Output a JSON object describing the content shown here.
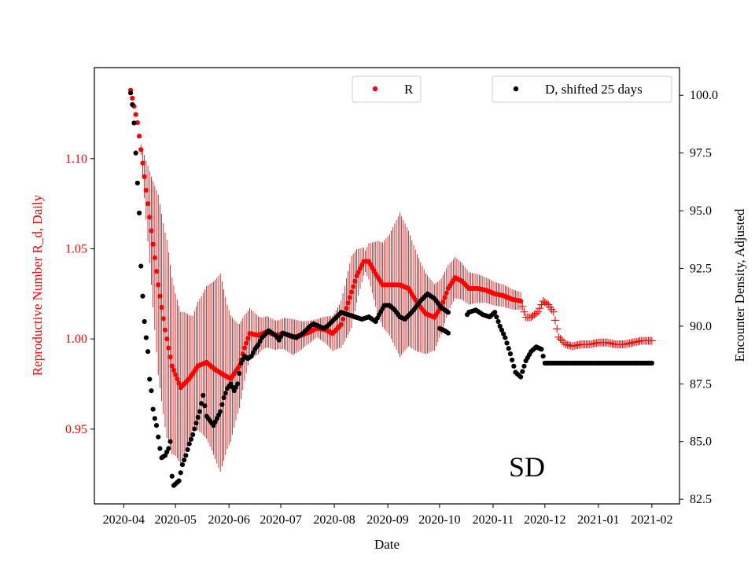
{
  "chart_data": {
    "type": "scatter",
    "title": "",
    "xlabel": "Date",
    "ylabel_left": "Reproductive Number R_d, Daily",
    "ylabel_right": "Encounter Density, Adjusted",
    "annotation": "SD",
    "x_start": "2020-04-01",
    "xlim_days": [
      -17,
      322
    ],
    "x_ticks": [
      {
        "label": "2020-04",
        "day": 0
      },
      {
        "label": "2020-05",
        "day": 30
      },
      {
        "label": "2020-06",
        "day": 61
      },
      {
        "label": "2020-07",
        "day": 91
      },
      {
        "label": "2020-08",
        "day": 122
      },
      {
        "label": "2020-09",
        "day": 153
      },
      {
        "label": "2020-10",
        "day": 183
      },
      {
        "label": "2020-11",
        "day": 214
      },
      {
        "label": "2020-12",
        "day": 244
      },
      {
        "label": "2021-01",
        "day": 275
      },
      {
        "label": "2021-02",
        "day": 306
      }
    ],
    "y_left": {
      "ylim": [
        0.9085,
        1.1505
      ],
      "ticks": [
        "0.95",
        "1.00",
        "1.05",
        "1.10"
      ],
      "tick_values": [
        0.95,
        1.0,
        1.05,
        1.1
      ],
      "color": "#ff0000"
    },
    "y_right": {
      "ylim": [
        82.3,
        101.2
      ],
      "ticks": [
        "82.5",
        "85.0",
        "87.5",
        "90.0",
        "92.5",
        "95.0",
        "97.5",
        "100.0"
      ],
      "tick_values": [
        82.5,
        85.0,
        87.5,
        90.0,
        92.5,
        95.0,
        97.5,
        100.0
      ],
      "color": "#000000"
    },
    "legend": [
      {
        "label": "R",
        "color": "#ff0000",
        "position": "upper-center"
      },
      {
        "label": "D, shifted 25 days",
        "color": "#000000",
        "position": "upper-right"
      }
    ],
    "series_R": {
      "name": "R",
      "color": "#ff0000",
      "marker_until_day": 230,
      "cross_marker_after_day": 230,
      "keypoints_day_value": [
        [
          4,
          1.138
        ],
        [
          8,
          1.12
        ],
        [
          12,
          1.09
        ],
        [
          16,
          1.06
        ],
        [
          20,
          1.03
        ],
        [
          24,
          1.005
        ],
        [
          28,
          0.985
        ],
        [
          33,
          0.973
        ],
        [
          38,
          0.978
        ],
        [
          43,
          0.985
        ],
        [
          48,
          0.987
        ],
        [
          53,
          0.983
        ],
        [
          58,
          0.98
        ],
        [
          62,
          0.978
        ],
        [
          67,
          0.985
        ],
        [
          70,
          0.995
        ],
        [
          73,
          1.003
        ],
        [
          78,
          1.002
        ],
        [
          83,
          1.004
        ],
        [
          88,
          1.002
        ],
        [
          93,
          1.003
        ],
        [
          98,
          1.001
        ],
        [
          103,
          1.002
        ],
        [
          108,
          1.004
        ],
        [
          112,
          1.006
        ],
        [
          117,
          1.005
        ],
        [
          121,
          1.003
        ],
        [
          126,
          1.008
        ],
        [
          130,
          1.02
        ],
        [
          135,
          1.035
        ],
        [
          139,
          1.043
        ],
        [
          142,
          1.043
        ],
        [
          146,
          1.036
        ],
        [
          150,
          1.03
        ],
        [
          155,
          1.03
        ],
        [
          160,
          1.03
        ],
        [
          165,
          1.028
        ],
        [
          170,
          1.02
        ],
        [
          175,
          1.014
        ],
        [
          180,
          1.012
        ],
        [
          184,
          1.018
        ],
        [
          188,
          1.028
        ],
        [
          192,
          1.034
        ],
        [
          196,
          1.032
        ],
        [
          200,
          1.028
        ],
        [
          205,
          1.028
        ],
        [
          210,
          1.027
        ],
        [
          215,
          1.025
        ],
        [
          220,
          1.024
        ],
        [
          225,
          1.022
        ],
        [
          230,
          1.021
        ],
        [
          233,
          1.012
        ],
        [
          236,
          1.012
        ],
        [
          240,
          1.015
        ],
        [
          243,
          1.021
        ],
        [
          246,
          1.019
        ],
        [
          249,
          1.015
        ],
        [
          252,
          1.001
        ],
        [
          256,
          0.997
        ],
        [
          260,
          0.996
        ],
        [
          265,
          0.997
        ],
        [
          270,
          0.997
        ],
        [
          275,
          0.998
        ],
        [
          280,
          0.998
        ],
        [
          285,
          0.997
        ],
        [
          290,
          0.997
        ],
        [
          295,
          0.998
        ],
        [
          300,
          0.999
        ],
        [
          306,
          0.999
        ]
      ],
      "error_bars_from_day": 10,
      "error_bars_to_day": 230,
      "error_half_width_keypoints": [
        [
          10,
          0.003
        ],
        [
          16,
          0.03
        ],
        [
          20,
          0.05
        ],
        [
          25,
          0.055
        ],
        [
          30,
          0.045
        ],
        [
          35,
          0.04
        ],
        [
          40,
          0.032
        ],
        [
          45,
          0.038
        ],
        [
          52,
          0.048
        ],
        [
          56,
          0.055
        ],
        [
          60,
          0.04
        ],
        [
          66,
          0.025
        ],
        [
          72,
          0.015
        ],
        [
          80,
          0.009
        ],
        [
          90,
          0.008
        ],
        [
          98,
          0.01
        ],
        [
          105,
          0.007
        ],
        [
          112,
          0.005
        ],
        [
          118,
          0.008
        ],
        [
          125,
          0.012
        ],
        [
          132,
          0.02
        ],
        [
          140,
          0.006
        ],
        [
          147,
          0.02
        ],
        [
          154,
          0.028
        ],
        [
          160,
          0.04
        ],
        [
          165,
          0.032
        ],
        [
          172,
          0.025
        ],
        [
          178,
          0.02
        ],
        [
          183,
          0.016
        ],
        [
          190,
          0.012
        ],
        [
          200,
          0.009
        ],
        [
          210,
          0.007
        ],
        [
          222,
          0.006
        ],
        [
          230,
          0.005
        ]
      ]
    },
    "series_D": {
      "name": "D, shifted 25 days",
      "color": "#000000",
      "keypoints_day_value": [
        [
          4,
          100.1
        ],
        [
          5,
          99.6
        ],
        [
          6,
          98.8
        ],
        [
          7,
          97.5
        ],
        [
          8,
          96.2
        ],
        [
          9,
          94.9
        ],
        [
          10,
          92.6
        ],
        [
          11,
          91.3
        ],
        [
          12,
          90.2
        ],
        [
          13,
          89.5
        ],
        [
          14,
          88.9
        ],
        [
          15,
          87.7
        ],
        [
          16,
          87.2
        ],
        [
          17,
          86.4
        ],
        [
          18,
          86.0
        ],
        [
          19,
          85.7
        ],
        [
          20,
          85.2
        ],
        [
          21,
          84.7
        ],
        [
          22,
          84.3
        ],
        [
          24,
          84.4
        ],
        [
          26,
          84.7
        ],
        [
          27,
          85.0
        ],
        [
          28,
          83.5
        ],
        [
          29,
          83.1
        ],
        [
          32,
          83.3
        ],
        [
          34,
          84.0
        ],
        [
          36,
          84.4
        ],
        [
          38,
          84.9
        ],
        [
          40,
          85.3
        ],
        [
          42,
          85.8
        ],
        [
          44,
          86.3
        ],
        [
          46,
          87.0
        ],
        [
          48,
          86.1
        ],
        [
          50,
          85.9
        ],
        [
          52,
          85.7
        ],
        [
          54,
          86.0
        ],
        [
          56,
          86.3
        ],
        [
          58,
          86.9
        ],
        [
          60,
          87.3
        ],
        [
          62,
          87.5
        ],
        [
          64,
          87.2
        ],
        [
          66,
          87.5
        ],
        [
          68,
          88.4
        ],
        [
          70,
          88.7
        ],
        [
          72,
          88.6
        ],
        [
          74,
          88.7
        ],
        [
          76,
          89.0
        ],
        [
          78,
          89.2
        ],
        [
          80,
          89.5
        ],
        [
          84,
          89.8
        ],
        [
          88,
          89.6
        ],
        [
          90,
          89.4
        ],
        [
          92,
          89.7
        ],
        [
          96,
          89.6
        ],
        [
          100,
          89.5
        ],
        [
          104,
          89.7
        ],
        [
          108,
          90.0
        ],
        [
          110,
          90.1
        ],
        [
          113,
          90.0
        ],
        [
          116,
          89.9
        ],
        [
          118,
          90.0
        ],
        [
          122,
          90.3
        ],
        [
          126,
          90.6
        ],
        [
          130,
          90.5
        ],
        [
          134,
          90.4
        ],
        [
          138,
          90.3
        ],
        [
          142,
          90.4
        ],
        [
          146,
          90.2
        ],
        [
          148,
          90.5
        ],
        [
          151,
          90.9
        ],
        [
          154,
          90.9
        ],
        [
          157,
          90.7
        ],
        [
          160,
          90.4
        ],
        [
          163,
          90.3
        ],
        [
          168,
          90.7
        ],
        [
          172,
          91.1
        ],
        [
          176,
          91.4
        ],
        [
          180,
          91.2
        ],
        [
          184,
          90.8
        ],
        [
          188,
          90.6
        ],
        [
          192,
          90.3
        ],
        [
          196,
          90.2
        ],
        [
          200,
          90.6
        ],
        [
          204,
          90.7
        ],
        [
          208,
          90.5
        ],
        [
          212,
          90.4
        ],
        [
          215,
          90.6
        ],
        [
          218,
          90.0
        ],
        [
          221,
          89.5
        ],
        [
          224,
          88.8
        ],
        [
          227,
          88.0
        ],
        [
          230,
          87.8
        ],
        [
          233,
          88.5
        ],
        [
          236,
          88.9
        ],
        [
          239,
          89.1
        ],
        [
          242,
          89.0
        ],
        [
          244,
          88.4
        ],
        [
          250,
          88.4
        ],
        [
          260,
          88.4
        ],
        [
          270,
          88.4
        ],
        [
          280,
          88.4
        ],
        [
          290,
          88.4
        ],
        [
          300,
          88.4
        ],
        [
          306,
          88.4
        ]
      ],
      "gap_days": [
        [
          188,
          199
        ]
      ],
      "segment_offsets": [
        {
          "from_day": 183,
          "to_day": 188,
          "values": [
            [
              183,
              89.9
            ],
            [
              186,
              89.8
            ],
            [
              188,
              89.7
            ]
          ]
        }
      ]
    }
  }
}
